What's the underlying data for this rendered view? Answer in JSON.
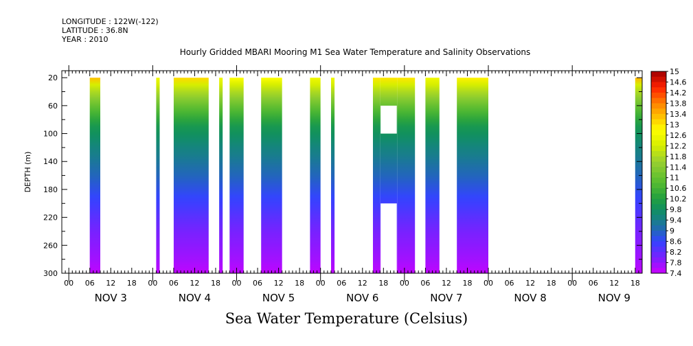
{
  "header": {
    "longitude": "LONGITUDE : 122W(-122)",
    "latitude": "LATITUDE : 36.8N",
    "year": "YEAR : 2010"
  },
  "plot_title": "Hourly Gridded MBARI Mooring M1 Sea Water Temperature and Salinity Observations",
  "bottom_title": "Sea Water Temperature (Celsius)",
  "chart_data": {
    "type": "heatmap",
    "title": "Hourly Gridded MBARI Mooring M1 Sea Water Temperature and Salinity Observations",
    "ylabel": "DEPTH (m)",
    "xlabel": "",
    "y_inverted": true,
    "ylim": [
      300,
      10
    ],
    "y_ticks": [
      20,
      60,
      100,
      140,
      180,
      220,
      260,
      300
    ],
    "hour_tick_labels": [
      "00",
      "06",
      "12",
      "18"
    ],
    "days": [
      "NOV 3",
      "NOV 4",
      "NOV 5",
      "NOV 6",
      "NOV 7",
      "NOV 8",
      "NOV 9"
    ],
    "x_range_hours": [
      -2,
      164
    ],
    "data_segments_hours": [
      {
        "start": 6,
        "end": 9,
        "surface_temp": 13.3
      },
      {
        "start": 25,
        "end": 26,
        "surface_temp": 12.6
      },
      {
        "start": 30,
        "end": 40,
        "surface_temp": 13.1
      },
      {
        "start": 43,
        "end": 44,
        "surface_temp": 12.6
      },
      {
        "start": 46,
        "end": 50,
        "surface_temp": 12.8
      },
      {
        "start": 55,
        "end": 61,
        "surface_temp": 12.8
      },
      {
        "start": 69,
        "end": 72,
        "surface_temp": 12.6
      },
      {
        "start": 75,
        "end": 76,
        "surface_temp": 12.6
      },
      {
        "start": 87,
        "end": 89,
        "surface_temp": 13.0
      },
      {
        "start": 89,
        "end": 94,
        "surface_temp": 13.0,
        "gaps_m": [
          [
            60,
            100
          ],
          [
            200,
            300
          ]
        ]
      },
      {
        "start": 94,
        "end": 99,
        "surface_temp": 13.0
      },
      {
        "start": 102,
        "end": 106,
        "surface_temp": 12.6
      },
      {
        "start": 111,
        "end": 120,
        "surface_temp": 12.9
      },
      {
        "start": 162,
        "end": 164,
        "surface_temp": 13.4
      }
    ],
    "colorbar": {
      "min": 7.4,
      "max": 15,
      "step": 0.2,
      "labels": [
        "15",
        "14.6",
        "14.2",
        "13.8",
        "13.4",
        "13",
        "12.6",
        "12.2",
        "11.8",
        "11.4",
        "11",
        "10.6",
        "10.2",
        "9.8",
        "9.4",
        "9",
        "8.6",
        "8.2",
        "7.8",
        "7.4"
      ],
      "stops": [
        {
          "v": 7.4,
          "c": "#cc00ff"
        },
        {
          "v": 8.0,
          "c": "#7722ff"
        },
        {
          "v": 8.6,
          "c": "#3344ff"
        },
        {
          "v": 9.0,
          "c": "#2266bb"
        },
        {
          "v": 9.4,
          "c": "#178088"
        },
        {
          "v": 9.8,
          "c": "#109060"
        },
        {
          "v": 10.2,
          "c": "#22a040"
        },
        {
          "v": 10.8,
          "c": "#55bb30"
        },
        {
          "v": 11.6,
          "c": "#99d030"
        },
        {
          "v": 12.2,
          "c": "#d6ee00"
        },
        {
          "v": 12.8,
          "c": "#ffff00"
        },
        {
          "v": 13.2,
          "c": "#ffcc00"
        },
        {
          "v": 13.8,
          "c": "#ff8000"
        },
        {
          "v": 14.4,
          "c": "#ff2000"
        },
        {
          "v": 15.0,
          "c": "#a00000"
        }
      ]
    }
  }
}
